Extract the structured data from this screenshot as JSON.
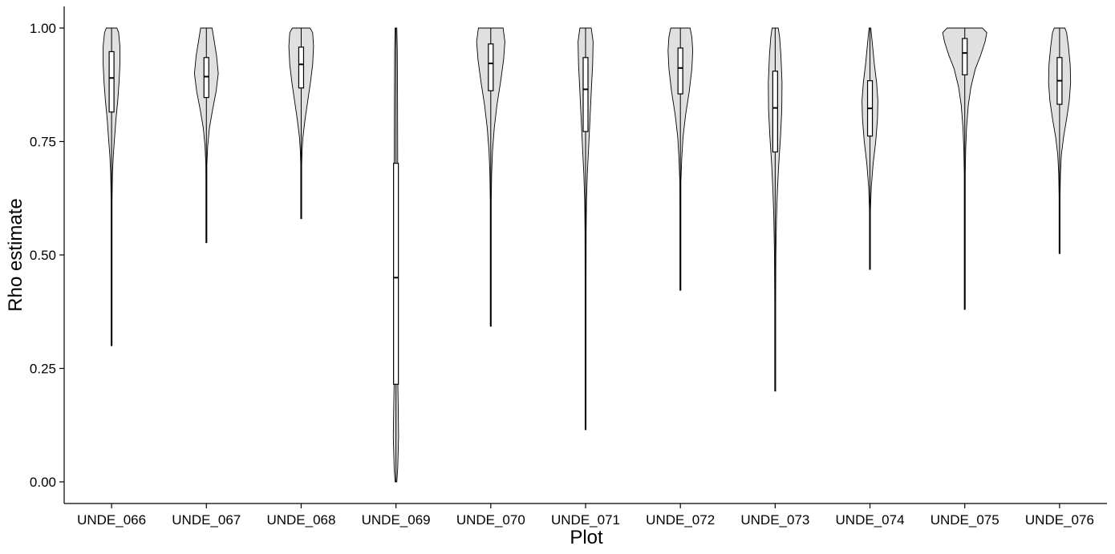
{
  "chart_data": {
    "type": "violin",
    "xlabel": "Plot",
    "ylabel": "Rho estimate",
    "ylim": [
      -0.045,
      1.05
    ],
    "yticks": [
      0.0,
      0.25,
      0.5,
      0.75,
      1.0
    ],
    "ytick_labels": [
      "0.00",
      "0.25",
      "0.50",
      "0.75",
      "1.00"
    ],
    "grid": false,
    "violin_fill": "#e0e0e0",
    "categories": [
      "UNDE_066",
      "UNDE_067",
      "UNDE_068",
      "UNDE_069",
      "UNDE_070",
      "UNDE_071",
      "UNDE_072",
      "UNDE_073",
      "UNDE_074",
      "UNDE_075",
      "UNDE_076"
    ],
    "series": [
      {
        "category": "UNDE_066",
        "box": {
          "q1": 0.815,
          "median": 0.89,
          "q3": 0.948
        },
        "range": [
          0.3,
          1.0
        ],
        "shape": [
          [
            0.3,
            0.002
          ],
          [
            0.4,
            0.003
          ],
          [
            0.5,
            0.005
          ],
          [
            0.58,
            0.007
          ],
          [
            0.62,
            0.01
          ],
          [
            0.68,
            0.02
          ],
          [
            0.72,
            0.04
          ],
          [
            0.76,
            0.07
          ],
          [
            0.8,
            0.1
          ],
          [
            0.84,
            0.14
          ],
          [
            0.88,
            0.17
          ],
          [
            0.92,
            0.19
          ],
          [
            0.96,
            0.19
          ],
          [
            0.99,
            0.16
          ],
          [
            1.0,
            0.12
          ]
        ]
      },
      {
        "category": "UNDE_067",
        "box": {
          "q1": 0.847,
          "median": 0.893,
          "q3": 0.935
        },
        "range": [
          0.527,
          1.0
        ],
        "shape": [
          [
            0.527,
            0.002
          ],
          [
            0.6,
            0.004
          ],
          [
            0.66,
            0.006
          ],
          [
            0.7,
            0.012
          ],
          [
            0.74,
            0.03
          ],
          [
            0.78,
            0.07
          ],
          [
            0.82,
            0.14
          ],
          [
            0.86,
            0.22
          ],
          [
            0.9,
            0.27
          ],
          [
            0.94,
            0.23
          ],
          [
            0.97,
            0.18
          ],
          [
            1.0,
            0.13
          ]
        ]
      },
      {
        "category": "UNDE_068",
        "box": {
          "q1": 0.868,
          "median": 0.92,
          "q3": 0.958
        },
        "range": [
          0.58,
          1.0
        ],
        "shape": [
          [
            0.58,
            0.002
          ],
          [
            0.65,
            0.004
          ],
          [
            0.7,
            0.008
          ],
          [
            0.73,
            0.02
          ],
          [
            0.76,
            0.04
          ],
          [
            0.8,
            0.09
          ],
          [
            0.84,
            0.15
          ],
          [
            0.88,
            0.21
          ],
          [
            0.92,
            0.26
          ],
          [
            0.96,
            0.28
          ],
          [
            0.99,
            0.26
          ],
          [
            1.0,
            0.2
          ]
        ]
      },
      {
        "category": "UNDE_069",
        "box": {
          "q1": 0.215,
          "median": 0.45,
          "q3": 0.702
        },
        "range": [
          0.0,
          1.0
        ],
        "shape": [
          [
            0.0,
            0.02
          ],
          [
            0.03,
            0.04
          ],
          [
            0.1,
            0.06
          ],
          [
            0.17,
            0.05
          ],
          [
            0.25,
            0.035
          ],
          [
            0.4,
            0.04
          ],
          [
            0.55,
            0.04
          ],
          [
            0.7,
            0.04
          ],
          [
            0.85,
            0.035
          ],
          [
            0.95,
            0.03
          ],
          [
            1.0,
            0.02
          ]
        ]
      },
      {
        "category": "UNDE_070",
        "box": {
          "q1": 0.862,
          "median": 0.922,
          "q3": 0.965
        },
        "range": [
          0.343,
          1.0
        ],
        "shape": [
          [
            0.343,
            0.002
          ],
          [
            0.45,
            0.003
          ],
          [
            0.55,
            0.005
          ],
          [
            0.62,
            0.008
          ],
          [
            0.68,
            0.02
          ],
          [
            0.73,
            0.04
          ],
          [
            0.78,
            0.08
          ],
          [
            0.83,
            0.14
          ],
          [
            0.88,
            0.22
          ],
          [
            0.93,
            0.29
          ],
          [
            0.97,
            0.32
          ],
          [
            1.0,
            0.28
          ]
        ]
      },
      {
        "category": "UNDE_071",
        "box": {
          "q1": 0.772,
          "median": 0.865,
          "q3": 0.935
        },
        "range": [
          0.115,
          1.0
        ],
        "shape": [
          [
            0.115,
            0.002
          ],
          [
            0.3,
            0.004
          ],
          [
            0.45,
            0.007
          ],
          [
            0.55,
            0.012
          ],
          [
            0.62,
            0.02
          ],
          [
            0.68,
            0.04
          ],
          [
            0.74,
            0.07
          ],
          [
            0.8,
            0.1
          ],
          [
            0.86,
            0.13
          ],
          [
            0.92,
            0.16
          ],
          [
            0.97,
            0.17
          ],
          [
            1.0,
            0.13
          ]
        ]
      },
      {
        "category": "UNDE_072",
        "box": {
          "q1": 0.855,
          "median": 0.912,
          "q3": 0.956
        },
        "range": [
          0.422,
          1.0
        ],
        "shape": [
          [
            0.422,
            0.002
          ],
          [
            0.52,
            0.004
          ],
          [
            0.6,
            0.006
          ],
          [
            0.66,
            0.012
          ],
          [
            0.71,
            0.03
          ],
          [
            0.76,
            0.06
          ],
          [
            0.81,
            0.12
          ],
          [
            0.86,
            0.2
          ],
          [
            0.91,
            0.26
          ],
          [
            0.95,
            0.28
          ],
          [
            0.98,
            0.26
          ],
          [
            1.0,
            0.22
          ]
        ]
      },
      {
        "category": "UNDE_073",
        "box": {
          "q1": 0.727,
          "median": 0.824,
          "q3": 0.905
        },
        "range": [
          0.2,
          1.0
        ],
        "shape": [
          [
            0.2,
            0.003
          ],
          [
            0.3,
            0.005
          ],
          [
            0.4,
            0.008
          ],
          [
            0.5,
            0.015
          ],
          [
            0.58,
            0.03
          ],
          [
            0.64,
            0.05
          ],
          [
            0.7,
            0.08
          ],
          [
            0.76,
            0.12
          ],
          [
            0.82,
            0.15
          ],
          [
            0.88,
            0.155
          ],
          [
            0.94,
            0.13
          ],
          [
            0.98,
            0.1
          ],
          [
            1.0,
            0.07
          ]
        ]
      },
      {
        "category": "UNDE_074",
        "box": {
          "q1": 0.762,
          "median": 0.823,
          "q3": 0.884
        },
        "range": [
          0.468,
          1.0
        ],
        "shape": [
          [
            0.468,
            0.002
          ],
          [
            0.55,
            0.005
          ],
          [
            0.6,
            0.01
          ],
          [
            0.65,
            0.03
          ],
          [
            0.7,
            0.07
          ],
          [
            0.75,
            0.13
          ],
          [
            0.8,
            0.17
          ],
          [
            0.84,
            0.18
          ],
          [
            0.88,
            0.15
          ],
          [
            0.92,
            0.1
          ],
          [
            0.96,
            0.06
          ],
          [
            1.0,
            0.02
          ]
        ]
      },
      {
        "category": "UNDE_075",
        "box": {
          "q1": 0.897,
          "median": 0.945,
          "q3": 0.977
        },
        "range": [
          0.38,
          1.0
        ],
        "shape": [
          [
            0.38,
            0.002
          ],
          [
            0.5,
            0.004
          ],
          [
            0.6,
            0.006
          ],
          [
            0.68,
            0.01
          ],
          [
            0.73,
            0.02
          ],
          [
            0.78,
            0.04
          ],
          [
            0.83,
            0.08
          ],
          [
            0.87,
            0.14
          ],
          [
            0.91,
            0.24
          ],
          [
            0.94,
            0.36
          ],
          [
            0.97,
            0.46
          ],
          [
            0.99,
            0.5
          ],
          [
            1.0,
            0.4
          ]
        ]
      },
      {
        "category": "UNDE_076",
        "box": {
          "q1": 0.832,
          "median": 0.884,
          "q3": 0.935
        },
        "range": [
          0.503,
          1.0
        ],
        "shape": [
          [
            0.503,
            0.002
          ],
          [
            0.58,
            0.005
          ],
          [
            0.63,
            0.01
          ],
          [
            0.68,
            0.02
          ],
          [
            0.72,
            0.04
          ],
          [
            0.76,
            0.09
          ],
          [
            0.8,
            0.16
          ],
          [
            0.84,
            0.22
          ],
          [
            0.88,
            0.25
          ],
          [
            0.92,
            0.24
          ],
          [
            0.96,
            0.2
          ],
          [
            0.99,
            0.16
          ],
          [
            1.0,
            0.12
          ]
        ]
      }
    ]
  }
}
